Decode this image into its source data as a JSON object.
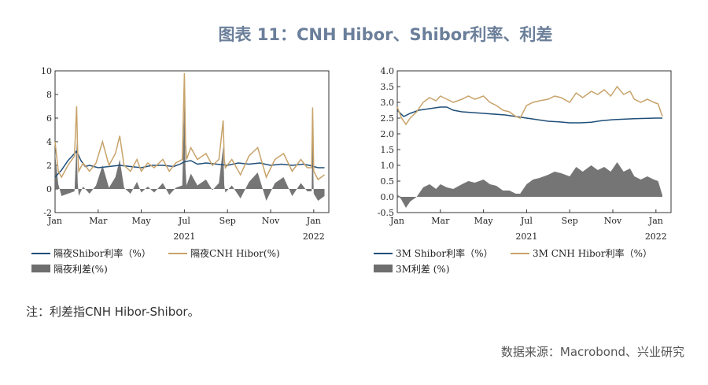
{
  "title": "图表 11：CNH Hibor、Shibor利率、利差",
  "note": "注：利差指CNH Hibor-Shibor。",
  "source": "数据来源：Macrobond、兴业研究",
  "colors": {
    "shibor": "#1f4e79",
    "hibor": "#c8a36a",
    "spread": "#6e6e6e"
  },
  "chart_data": [
    {
      "type": "line",
      "x_tick_labels": [
        "Jan",
        "Mar",
        "May",
        "Jul",
        "Sep",
        "Nov",
        "Jan"
      ],
      "x_year_labels": [
        "2021",
        "2022"
      ],
      "ylim": [
        -2,
        10
      ],
      "y_ticks": [
        -2,
        0,
        2,
        4,
        6,
        8,
        10
      ],
      "months_span": [
        0,
        12.7
      ],
      "series": [
        {
          "name": "隔夜Shibor利率（%）",
          "kind": "line",
          "color": "#1f4e79",
          "x": [
            0,
            0.3,
            0.6,
            0.9,
            1.0,
            1.2,
            1.4,
            1.6,
            2.0,
            2.5,
            3.0,
            3.5,
            4.0,
            4.5,
            5.0,
            5.5,
            5.8,
            6.0,
            6.3,
            6.6,
            7.0,
            7.5,
            8.0,
            8.5,
            9.0,
            9.5,
            10.0,
            10.5,
            11.0,
            11.5,
            11.8,
            12.0,
            12.2,
            12.5
          ],
          "y": [
            1.0,
            1.6,
            2.4,
            3.0,
            3.2,
            2.4,
            1.9,
            2.0,
            1.8,
            1.9,
            2.0,
            1.9,
            1.8,
            2.0,
            2.0,
            1.9,
            2.1,
            2.3,
            2.4,
            2.1,
            2.2,
            2.1,
            2.0,
            2.2,
            2.1,
            2.2,
            2.0,
            2.1,
            2.0,
            2.1,
            2.0,
            1.9,
            1.8,
            1.8
          ]
        },
        {
          "name": "隔夜CNH Hibor(%)",
          "kind": "line",
          "color": "#c8a36a",
          "x": [
            0,
            0.15,
            0.3,
            0.6,
            0.9,
            1.0,
            1.05,
            1.1,
            1.3,
            1.6,
            1.9,
            2.2,
            2.5,
            2.8,
            3.0,
            3.2,
            3.5,
            3.8,
            4.0,
            4.3,
            4.6,
            5.0,
            5.3,
            5.6,
            5.9,
            6.0,
            6.05,
            6.1,
            6.3,
            6.6,
            7.0,
            7.3,
            7.6,
            7.8,
            7.85,
            7.9,
            8.2,
            8.6,
            9.0,
            9.4,
            9.8,
            10.2,
            10.6,
            11.0,
            11.4,
            11.7,
            11.9,
            11.95,
            12.0,
            12.2,
            12.5
          ],
          "y": [
            4.0,
            1.5,
            1.0,
            2.0,
            2.8,
            7.0,
            3.0,
            1.5,
            2.2,
            1.5,
            2.2,
            4.0,
            2.0,
            3.0,
            4.5,
            2.0,
            1.5,
            2.5,
            1.5,
            2.2,
            1.8,
            2.5,
            1.5,
            2.2,
            2.5,
            9.8,
            4.0,
            2.5,
            3.5,
            2.5,
            3.0,
            2.0,
            2.5,
            5.8,
            2.5,
            1.8,
            2.5,
            1.2,
            2.8,
            3.5,
            1.0,
            2.5,
            3.0,
            1.5,
            2.5,
            1.8,
            1.8,
            6.9,
            1.5,
            0.8,
            1.2
          ]
        },
        {
          "name": "隔夜利差(%)",
          "kind": "area",
          "color": "#6e6e6e",
          "x": [
            0,
            0.15,
            0.3,
            0.6,
            0.9,
            1.0,
            1.05,
            1.1,
            1.3,
            1.6,
            1.9,
            2.2,
            2.5,
            2.8,
            3.0,
            3.2,
            3.5,
            3.8,
            4.0,
            4.3,
            4.6,
            5.0,
            5.3,
            5.6,
            5.9,
            6.0,
            6.05,
            6.1,
            6.3,
            6.6,
            7.0,
            7.3,
            7.6,
            7.8,
            7.85,
            7.9,
            8.2,
            8.6,
            9.0,
            9.4,
            9.8,
            10.2,
            10.6,
            11.0,
            11.4,
            11.7,
            11.9,
            11.95,
            12.0,
            12.2,
            12.5
          ],
          "y": [
            3.0,
            0.4,
            -0.6,
            -0.4,
            -0.2,
            4.0,
            0.5,
            -0.6,
            0.2,
            -0.4,
            0.3,
            2.0,
            0.1,
            1.0,
            2.5,
            0.1,
            -0.4,
            0.6,
            -0.3,
            0.2,
            -0.3,
            0.5,
            -0.5,
            0.1,
            0.3,
            7.5,
            1.7,
            0.3,
            1.3,
            0.3,
            0.8,
            -0.1,
            0.5,
            3.6,
            0.3,
            -0.3,
            0.3,
            -0.8,
            0.6,
            1.4,
            -1.0,
            0.5,
            1.0,
            -0.6,
            0.5,
            -0.2,
            -0.2,
            5.0,
            -0.4,
            -1.0,
            -0.6
          ]
        }
      ]
    },
    {
      "type": "line",
      "x_tick_labels": [
        "Jan",
        "Mar",
        "May",
        "Jul",
        "Sep",
        "Nov",
        "Jan"
      ],
      "x_year_labels": [
        "2021",
        "2022"
      ],
      "ylim": [
        -0.5,
        4.0
      ],
      "y_ticks": [
        -0.5,
        0.0,
        0.5,
        1.0,
        1.5,
        2.0,
        2.5,
        3.0,
        3.5,
        4.0
      ],
      "months_span": [
        0,
        12.7
      ],
      "series": [
        {
          "name": "3M Shibor利率（%）",
          "kind": "line",
          "color": "#1f4e79",
          "x": [
            0,
            0.3,
            0.6,
            1.0,
            1.5,
            2.0,
            2.3,
            2.6,
            3.0,
            4.0,
            5.0,
            5.5,
            6.0,
            6.5,
            7.0,
            7.5,
            8.0,
            8.5,
            9.0,
            9.5,
            10.0,
            11.0,
            12.0,
            12.3
          ],
          "y": [
            2.75,
            2.55,
            2.65,
            2.75,
            2.8,
            2.85,
            2.85,
            2.75,
            2.7,
            2.65,
            2.6,
            2.55,
            2.5,
            2.45,
            2.4,
            2.38,
            2.35,
            2.35,
            2.37,
            2.42,
            2.45,
            2.48,
            2.5,
            2.5
          ]
        },
        {
          "name": "3M CNH Hibor利率（%）",
          "kind": "line",
          "color": "#c8a36a",
          "x": [
            0,
            0.2,
            0.4,
            0.6,
            0.9,
            1.2,
            1.5,
            1.8,
            2.0,
            2.3,
            2.6,
            3.0,
            3.3,
            3.6,
            4.0,
            4.3,
            4.6,
            4.9,
            5.2,
            5.5,
            5.7,
            6.0,
            6.3,
            6.6,
            7.0,
            7.3,
            7.6,
            8.0,
            8.3,
            8.6,
            9.0,
            9.3,
            9.6,
            9.9,
            10.2,
            10.5,
            10.8,
            11.0,
            11.3,
            11.6,
            11.9,
            12.1,
            12.3
          ],
          "y": [
            2.85,
            2.5,
            2.3,
            2.5,
            2.7,
            3.0,
            3.15,
            3.05,
            3.2,
            3.1,
            3.0,
            3.1,
            3.2,
            3.1,
            3.2,
            3.0,
            2.9,
            2.75,
            2.7,
            2.55,
            2.5,
            2.9,
            3.0,
            3.05,
            3.1,
            3.2,
            3.15,
            3.0,
            3.3,
            3.15,
            3.35,
            3.25,
            3.4,
            3.2,
            3.5,
            3.25,
            3.35,
            3.1,
            3.0,
            3.1,
            3.0,
            2.95,
            2.55
          ]
        },
        {
          "name": "3M利差 (%)",
          "kind": "area",
          "color": "#6e6e6e",
          "x": [
            0,
            0.2,
            0.4,
            0.6,
            0.9,
            1.2,
            1.5,
            1.8,
            2.0,
            2.3,
            2.6,
            3.0,
            3.3,
            3.6,
            4.0,
            4.3,
            4.6,
            4.9,
            5.2,
            5.5,
            5.7,
            6.0,
            6.3,
            6.6,
            7.0,
            7.3,
            7.6,
            8.0,
            8.3,
            8.6,
            9.0,
            9.3,
            9.6,
            9.9,
            10.2,
            10.5,
            10.8,
            11.0,
            11.3,
            11.6,
            11.9,
            12.1,
            12.3
          ],
          "y": [
            0.1,
            -0.1,
            -0.35,
            -0.15,
            0.0,
            0.3,
            0.4,
            0.25,
            0.4,
            0.3,
            0.25,
            0.4,
            0.5,
            0.45,
            0.55,
            0.4,
            0.35,
            0.2,
            0.2,
            0.1,
            0.1,
            0.4,
            0.55,
            0.6,
            0.7,
            0.8,
            0.75,
            0.65,
            0.95,
            0.8,
            1.0,
            0.85,
            0.95,
            0.8,
            1.1,
            0.8,
            0.9,
            0.65,
            0.55,
            0.65,
            0.55,
            0.5,
            0.05
          ]
        }
      ]
    }
  ]
}
